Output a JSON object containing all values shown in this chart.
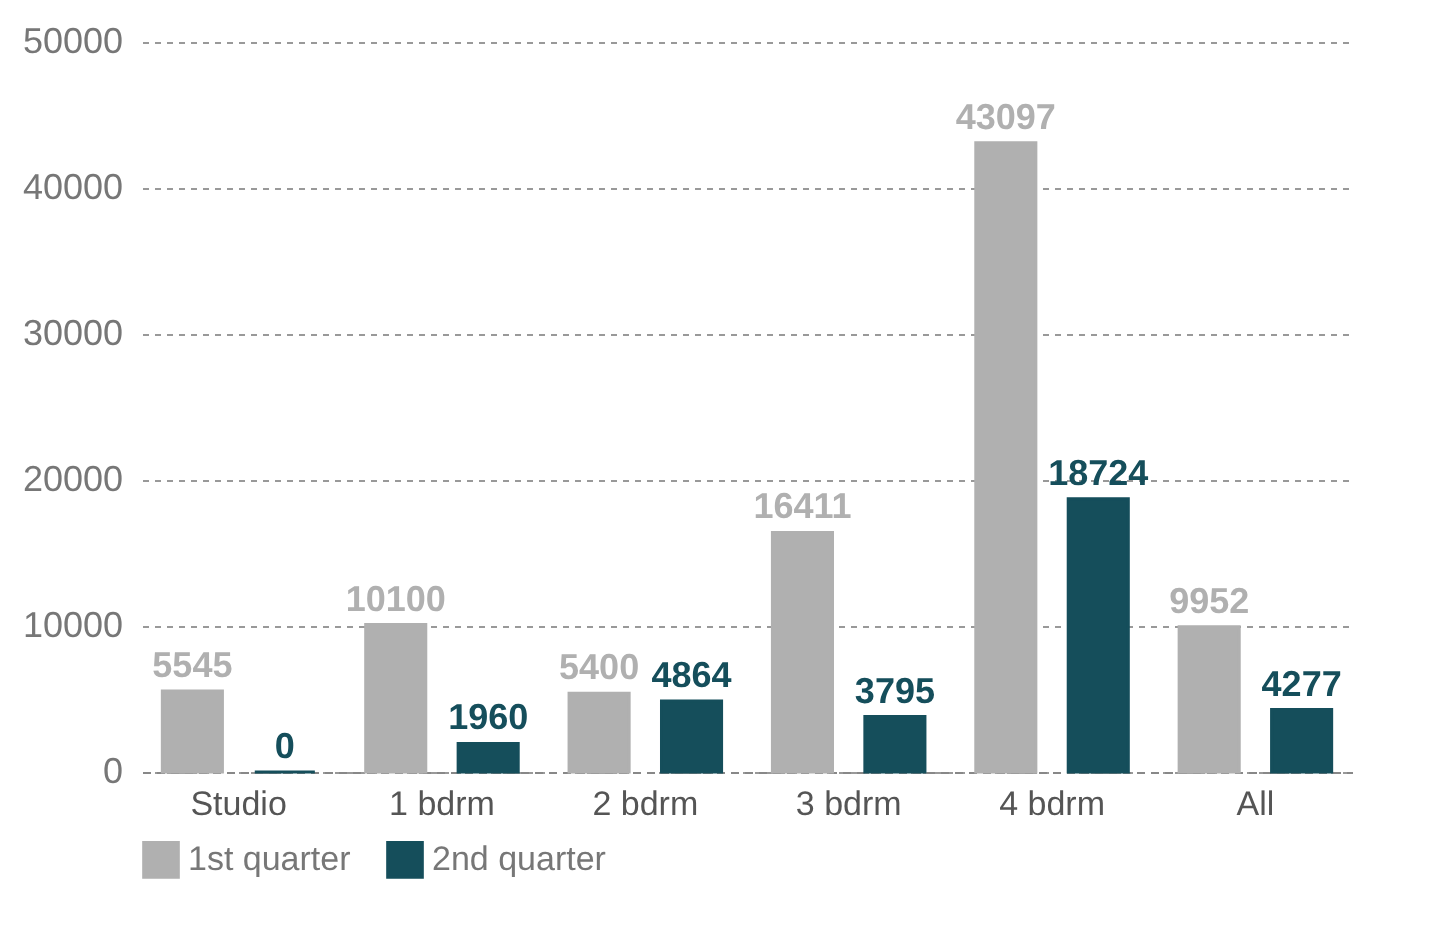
{
  "chart_data": {
    "type": "bar",
    "categories": [
      "Studio",
      "1 bdrm",
      "2 bdrm",
      "3 bdrm",
      "4 bdrm",
      "All"
    ],
    "series": [
      {
        "name": "1st quarter",
        "color": "#b0b0b0",
        "values": [
          5545,
          10100,
          5400,
          16411,
          43097,
          9952
        ]
      },
      {
        "name": "2nd quarter",
        "color": "#154e5b",
        "values": [
          0,
          1960,
          4864,
          3795,
          18724,
          4277
        ]
      }
    ],
    "ylim": [
      0,
      50000
    ],
    "yticks": [
      0,
      10000,
      20000,
      30000,
      40000,
      50000
    ],
    "grid": "y",
    "legend": "bottom",
    "data_labels": true
  }
}
